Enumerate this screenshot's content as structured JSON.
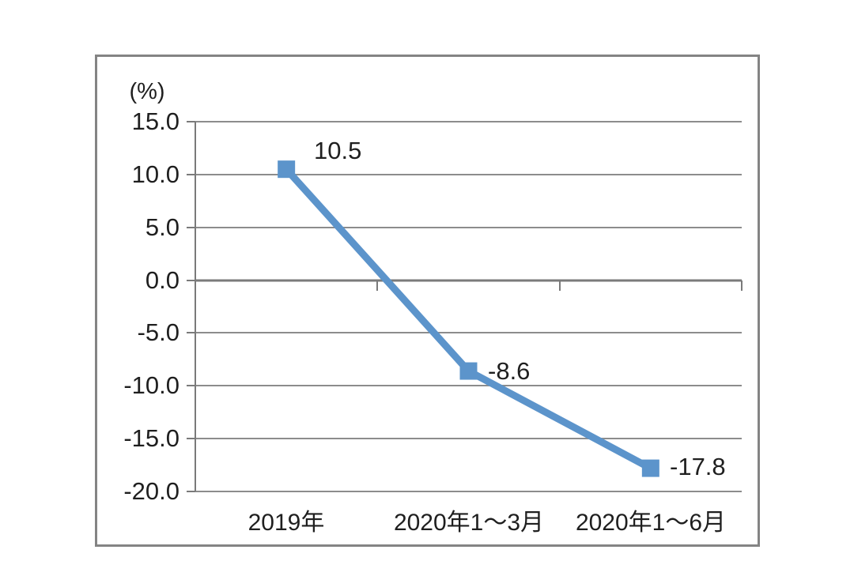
{
  "chart_data": {
    "type": "line",
    "title": "",
    "ylabel": "(%)",
    "xlabel": "",
    "categories": [
      "2019年",
      "2020年1～3月",
      "2020年1～6月"
    ],
    "series": [
      {
        "name": "",
        "values": [
          10.5,
          -8.6,
          -17.8
        ],
        "data_labels": [
          "10.5",
          "-8.6",
          "-17.8"
        ]
      }
    ],
    "yticks": [
      15.0,
      10.0,
      5.0,
      0.0,
      -5.0,
      -10.0,
      -15.0,
      -20.0
    ],
    "ytick_labels": [
      "15.0",
      "10.0",
      "5.0",
      "0.0",
      "-5.0",
      "-10.0",
      "-15.0",
      "-20.0"
    ],
    "ylim": [
      -20.0,
      15.0
    ],
    "grid": "horizontal",
    "legend": "none",
    "marker_shape": "square",
    "colors": {
      "line": "#5C94CB",
      "marker": "#5C94CB",
      "gridline": "#8c8c8c",
      "axis": "#7a7a7a",
      "frame_border": "#848484",
      "text": "#1f1f1f",
      "background": "#ffffff"
    }
  }
}
